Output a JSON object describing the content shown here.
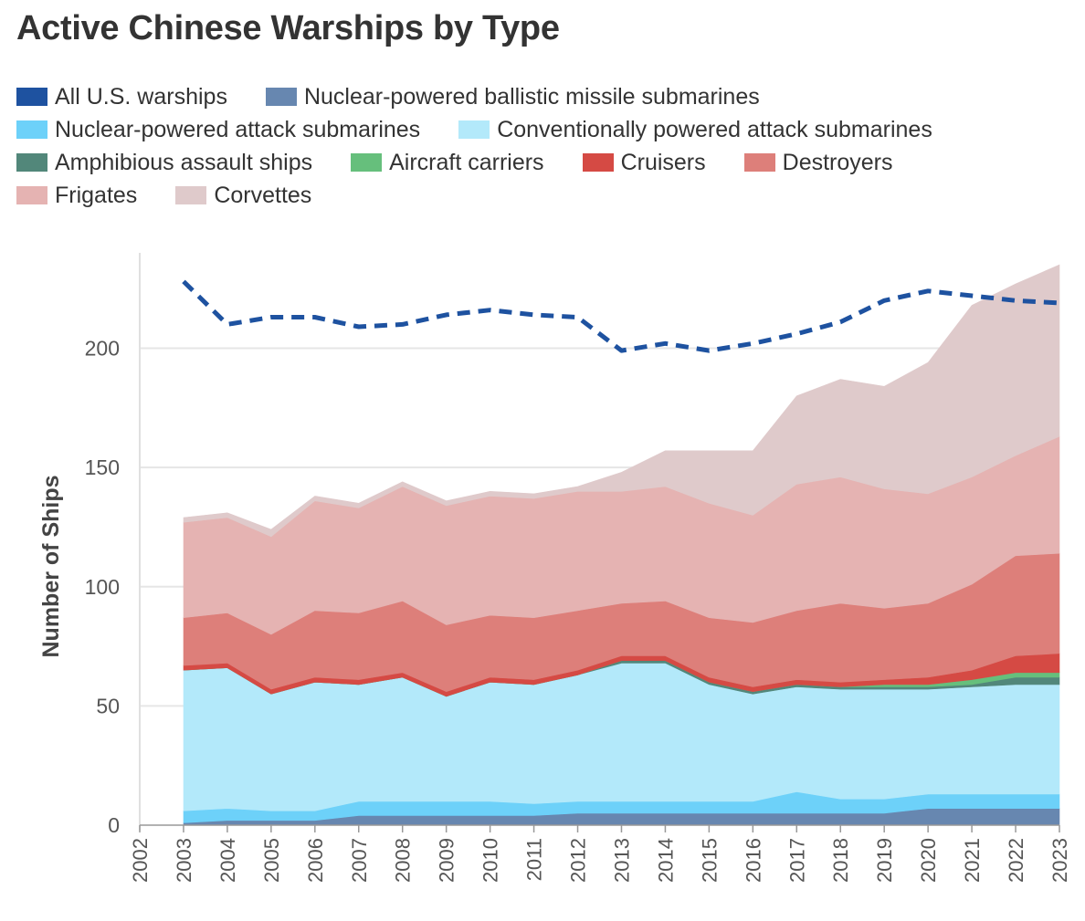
{
  "chart_data": {
    "type": "area",
    "title": "Active Chinese Warships by Type",
    "xlabel": "",
    "ylabel": "Number of Ships",
    "ylim": [
      0,
      240
    ],
    "yticks": [
      0,
      50,
      100,
      150,
      200
    ],
    "years": [
      "2002",
      "2003",
      "2004",
      "2005",
      "2006",
      "2007",
      "2008",
      "2009",
      "2010",
      "2011",
      "2012",
      "2013",
      "2014",
      "2015",
      "2016",
      "2017",
      "2018",
      "2019",
      "2020",
      "2021",
      "2022",
      "2023"
    ],
    "series": [
      {
        "name": "Nuclear-powered ballistic missile submarines",
        "color": "#6787b0",
        "values": [
          null,
          1,
          2,
          2,
          2,
          4,
          4,
          4,
          4,
          4,
          5,
          5,
          5,
          5,
          5,
          5,
          5,
          5,
          7,
          7,
          7,
          7
        ]
      },
      {
        "name": "Nuclear-powered attack submarines",
        "color": "#6dd1f9",
        "values": [
          null,
          5,
          5,
          4,
          4,
          6,
          6,
          6,
          6,
          5,
          5,
          5,
          5,
          5,
          5,
          9,
          6,
          6,
          6,
          6,
          6,
          6
        ]
      },
      {
        "name": "Conventionally powered attack submarines",
        "color": "#b3e9fa",
        "values": [
          null,
          59,
          59,
          49,
          54,
          49,
          52,
          44,
          50,
          50,
          53,
          58,
          58,
          49,
          45,
          44,
          46,
          46,
          44,
          45,
          46,
          46
        ]
      },
      {
        "name": "Amphibious assault ships",
        "color": "#52877a",
        "values": [
          null,
          0,
          0,
          0,
          0,
          0,
          0,
          0,
          0,
          0,
          0,
          1,
          1,
          1,
          1,
          1,
          1,
          1,
          1,
          1,
          3,
          3
        ]
      },
      {
        "name": "Aircraft carriers",
        "color": "#66bf7c",
        "values": [
          null,
          0,
          0,
          0,
          0,
          0,
          0,
          0,
          0,
          0,
          0,
          0,
          0,
          0,
          0,
          0,
          0,
          1,
          1,
          2,
          2,
          2
        ]
      },
      {
        "name": "Cruisers",
        "color": "#d54a44",
        "values": [
          null,
          2,
          2,
          2,
          2,
          2,
          2,
          2,
          2,
          2,
          2,
          2,
          2,
          2,
          2,
          2,
          2,
          2,
          3,
          4,
          7,
          8
        ]
      },
      {
        "name": "Destroyers",
        "color": "#dd7f7a",
        "values": [
          null,
          20,
          21,
          23,
          28,
          28,
          30,
          28,
          26,
          26,
          25,
          22,
          23,
          25,
          27,
          29,
          33,
          30,
          31,
          36,
          42,
          42
        ]
      },
      {
        "name": "Frigates",
        "color": "#e5b3b2",
        "values": [
          null,
          40,
          40,
          41,
          46,
          44,
          48,
          50,
          50,
          50,
          50,
          47,
          48,
          48,
          45,
          53,
          53,
          50,
          46,
          45,
          42,
          49
        ]
      },
      {
        "name": "Corvettes",
        "color": "#dfcacb",
        "values": [
          null,
          2,
          2,
          3,
          2,
          2,
          2,
          2,
          2,
          2,
          2,
          8,
          15,
          22,
          27,
          37,
          41,
          43,
          55,
          72,
          72,
          72
        ]
      }
    ],
    "line": {
      "name": "All U.S. warships",
      "color": "#1e52a0",
      "values": [
        null,
        228,
        210,
        213,
        213,
        209,
        210,
        214,
        216,
        214,
        213,
        199,
        202,
        199,
        202,
        206,
        211,
        220,
        224,
        222,
        220,
        219
      ]
    }
  }
}
